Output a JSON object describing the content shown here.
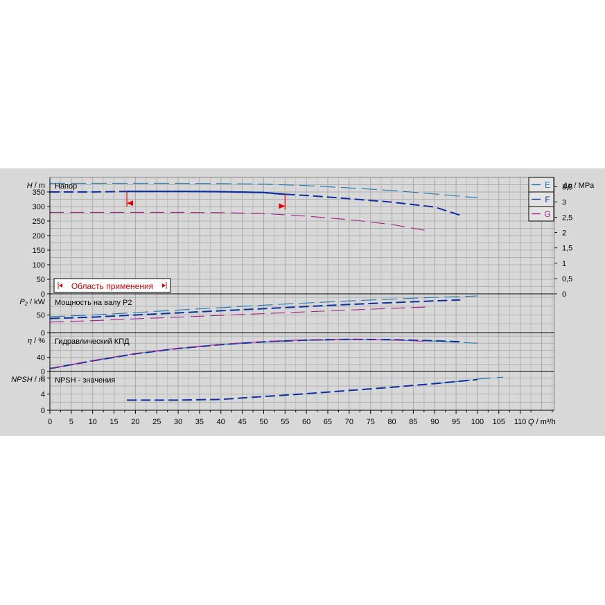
{
  "chart_data": [
    {
      "type": "line",
      "panel": "head",
      "title": "Напор",
      "ylabel_symbol": "H",
      "ylabel_unit": "m",
      "right_axis_symbol": "Δp",
      "right_axis_unit": "MPa",
      "ylim": [
        0,
        400
      ],
      "yticks": [
        0,
        50,
        100,
        150,
        200,
        250,
        300,
        350
      ],
      "right_ylim": [
        0,
        3.8
      ],
      "right_ticks": [
        0,
        0.5,
        1,
        1.5,
        2,
        2.5,
        3,
        3.5
      ],
      "right_tick_labels": [
        "0",
        "0,5",
        "1",
        "1,5",
        "2",
        "2,5",
        "3",
        "3,5"
      ],
      "series": [
        {
          "name": "E",
          "color": "#1f78b4",
          "x": [
            0,
            10,
            20,
            30,
            40,
            50,
            60,
            70,
            80,
            90,
            100
          ],
          "y": [
            380,
            380,
            380,
            380,
            379,
            377,
            372,
            364,
            355,
            343,
            330
          ]
        },
        {
          "name": "F",
          "color": "#0a2fa0",
          "x": [
            0,
            10,
            18,
            20,
            30,
            40,
            50,
            55,
            60,
            70,
            80,
            90,
            96
          ],
          "y": [
            350,
            350,
            352,
            352,
            352,
            351,
            348,
            342,
            338,
            327,
            315,
            298,
            270
          ]
        },
        {
          "name": "G",
          "color": "#a0208a",
          "x": [
            0,
            10,
            20,
            30,
            40,
            50,
            60,
            70,
            80,
            89
          ],
          "y": [
            280,
            280,
            280,
            280,
            279,
            276,
            267,
            255,
            238,
            215
          ]
        }
      ],
      "operating_range": {
        "label": "Область применения",
        "x": [
          18,
          55
        ],
        "color": "#e00000"
      }
    },
    {
      "type": "line",
      "panel": "power",
      "title": "Мощность на валу P2",
      "ylabel_symbol": "P₂",
      "ylabel_unit": "kW",
      "ylim": [
        0,
        110
      ],
      "yticks": [
        0,
        50
      ],
      "series": [
        {
          "name": "E",
          "color": "#1f78b4",
          "x": [
            0,
            10,
            20,
            30,
            40,
            50,
            60,
            70,
            80,
            90,
            100
          ],
          "y": [
            45,
            50,
            57,
            64,
            71,
            78,
            84,
            90,
            95,
            100,
            104
          ]
        },
        {
          "name": "F",
          "color": "#0a2fa0",
          "x": [
            0,
            10,
            20,
            30,
            40,
            50,
            60,
            70,
            80,
            90,
            96
          ],
          "y": [
            40,
            44,
            50,
            56,
            62,
            68,
            74,
            80,
            85,
            90,
            93
          ]
        },
        {
          "name": "G",
          "color": "#a0208a",
          "x": [
            0,
            10,
            20,
            30,
            40,
            50,
            60,
            70,
            80,
            89
          ],
          "y": [
            30,
            34,
            39,
            44,
            49,
            54,
            59,
            64,
            69,
            73
          ]
        }
      ]
    },
    {
      "type": "line",
      "panel": "efficiency",
      "title": "Гидравлический КПД",
      "ylabel_symbol": "η",
      "ylabel_unit": "%",
      "ylim": [
        0,
        110
      ],
      "yticks": [
        0,
        40
      ],
      "series": [
        {
          "name": "E",
          "color": "#1f78b4",
          "x": [
            0,
            10,
            20,
            30,
            40,
            50,
            60,
            70,
            80,
            90,
            100
          ],
          "y": [
            8,
            30,
            50,
            65,
            76,
            83,
            88,
            90,
            89,
            86,
            80
          ]
        },
        {
          "name": "F",
          "color": "#0a2fa0",
          "x": [
            0,
            10,
            20,
            30,
            40,
            50,
            60,
            70,
            80,
            90,
            96
          ],
          "y": [
            8,
            30,
            50,
            65,
            76,
            84,
            89,
            91,
            90,
            87,
            84
          ]
        },
        {
          "name": "G",
          "color": "#a0208a",
          "x": [
            0,
            10,
            20,
            30,
            40,
            50,
            60,
            70,
            80,
            89
          ],
          "y": [
            8,
            31,
            51,
            66,
            77,
            85,
            90,
            91,
            89,
            85
          ]
        }
      ]
    },
    {
      "type": "line",
      "panel": "npsh",
      "title": "NPSH - значения",
      "ylabel_symbol": "NPSH",
      "ylabel_unit": "m",
      "ylim": [
        0,
        9.6
      ],
      "yticks": [
        0,
        4,
        8
      ],
      "series": [
        {
          "name": "E",
          "color": "#1f78b4",
          "x": [
            90,
            95,
            100,
            106
          ],
          "y": [
            6.5,
            7.1,
            7.7,
            8.2
          ]
        },
        {
          "name": "F",
          "color": "#0a2fa0",
          "x": [
            18,
            20,
            30,
            40,
            50,
            60,
            70,
            80,
            90,
            100
          ],
          "y": [
            2.5,
            2.5,
            2.5,
            2.7,
            3.4,
            4.1,
            4.9,
            5.7,
            6.6,
            7.6
          ]
        }
      ]
    }
  ],
  "x_axis": {
    "label_symbol": "Q",
    "label_unit": "m³/h",
    "xlim": [
      0,
      118
    ],
    "ticks": [
      0,
      5,
      10,
      15,
      20,
      25,
      30,
      35,
      40,
      45,
      50,
      55,
      60,
      65,
      70,
      75,
      80,
      85,
      90,
      95,
      100,
      105,
      110
    ]
  },
  "legend": {
    "placement": "top-right",
    "entries": [
      {
        "label": "E",
        "color": "#1f78b4"
      },
      {
        "label": "F",
        "color": "#0a2fa0"
      },
      {
        "label": "G",
        "color": "#a0208a"
      }
    ]
  }
}
